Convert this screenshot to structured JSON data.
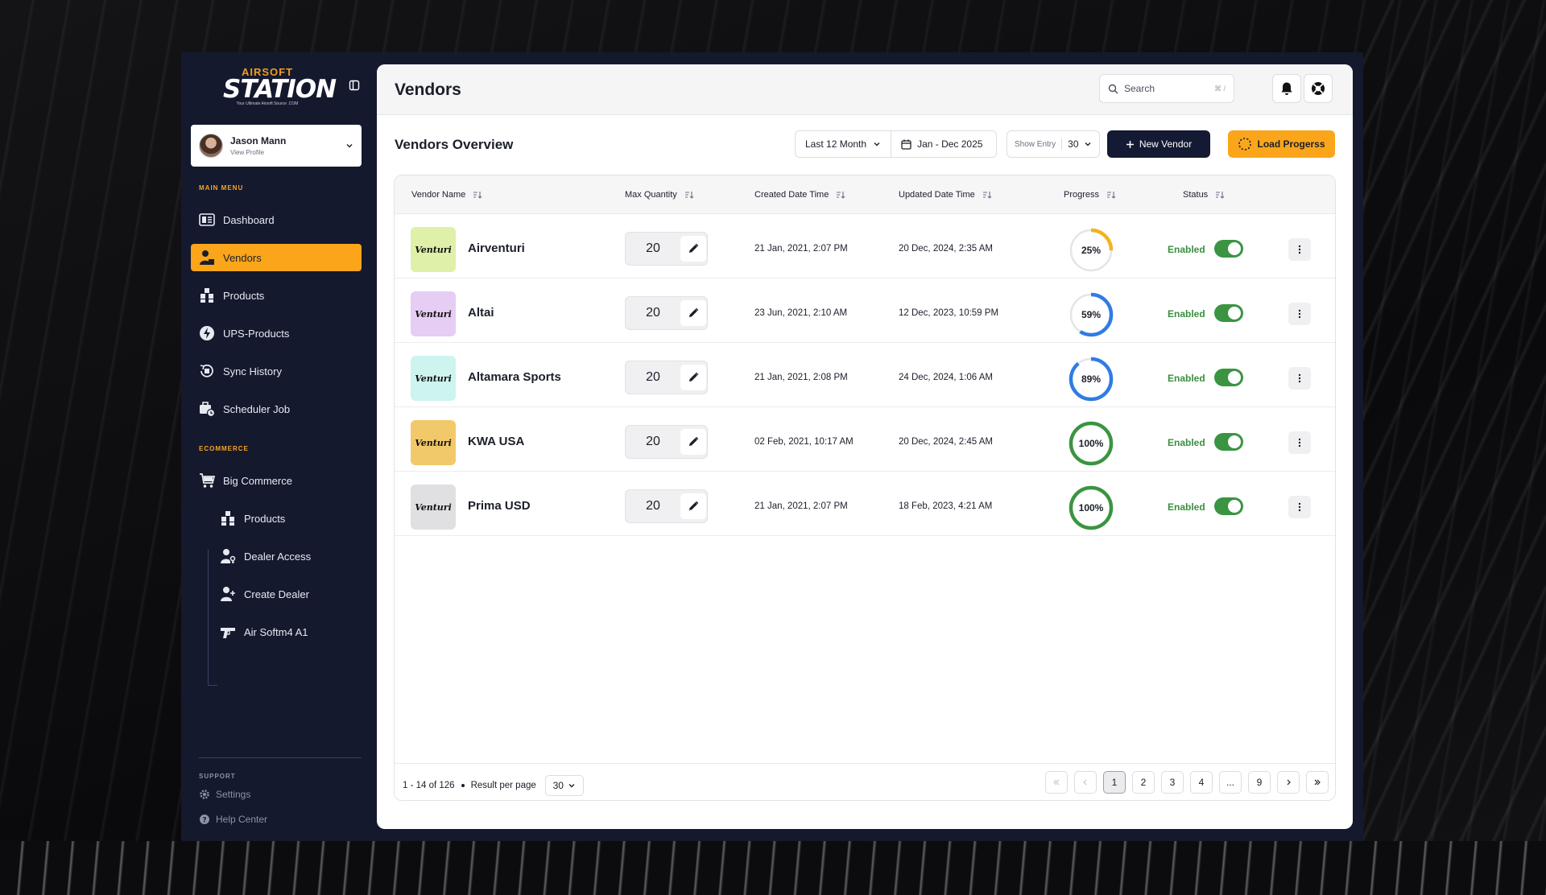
{
  "brand": {
    "line1": "AIRSOFT",
    "line2": "STATION",
    "tagline": "Your Ultimate Airsoft Source  .COM"
  },
  "profile": {
    "name": "Jason Mann",
    "subtitle": "View Profile"
  },
  "sidebar": {
    "main_menu_label": "MAIN MENU",
    "main_items": [
      {
        "label": "Dashboard",
        "icon": "dashboard-icon"
      },
      {
        "label": "Vendors",
        "icon": "vendor-icon",
        "active": true
      },
      {
        "label": "Products",
        "icon": "boxes-icon"
      },
      {
        "label": "UPS-Products",
        "icon": "lightning-icon"
      },
      {
        "label": "Sync History",
        "icon": "history-icon"
      },
      {
        "label": "Scheduler Job",
        "icon": "scheduler-icon"
      }
    ],
    "ecommerce_label": "ECOMMERCE",
    "ecommerce_items": [
      {
        "label": "Big Commerce",
        "icon": "cart-icon"
      }
    ],
    "ecommerce_sub_items": [
      {
        "label": "Products",
        "icon": "boxes-icon"
      },
      {
        "label": "Dealer Access",
        "icon": "user-key-icon"
      },
      {
        "label": "Create Dealer",
        "icon": "user-plus-icon"
      },
      {
        "label": "Air Softm4 A1",
        "icon": "gun-icon"
      }
    ],
    "support_label": "SUPPORT",
    "support_items": [
      {
        "label": "Settings",
        "icon": "gear-icon"
      },
      {
        "label": "Help Center",
        "icon": "help-icon"
      }
    ]
  },
  "header": {
    "title": "Vendors",
    "search_placeholder": "Search",
    "search_shortcut": "⌘ /"
  },
  "toolbar": {
    "section_title": "Vendors Overview",
    "period": "Last 12 Month",
    "date_range": "Jan - Dec 2025",
    "show_entry_label": "Show Entry",
    "show_entry_value": "30",
    "new_vendor_label": "New Vendor",
    "load_progress_label": "Load Progerss"
  },
  "table": {
    "columns": [
      "Vendor Name",
      "Max Quantity",
      "Created Date Time",
      "Updated Date Time",
      "Progress",
      "Status"
    ],
    "rows": [
      {
        "name": "Airventuri",
        "logo": "Venturi",
        "tile_color": "#dff0a8",
        "qty": "20",
        "created": "21 Jan, 2021, 2:07 PM",
        "updated": "20 Dec, 2024, 2:35 AM",
        "progress": 25,
        "progress_label": "25%",
        "ring_color": "#f5b21d",
        "status": "Enabled"
      },
      {
        "name": "Altai",
        "logo": "Venturi",
        "tile_color": "#e5cdf3",
        "qty": "20",
        "created": "23 Jun, 2021, 2:10 AM",
        "updated": "12 Dec, 2023, 10:59 PM",
        "progress": 59,
        "progress_label": "59%",
        "ring_color": "#2f7ce3",
        "status": "Enabled"
      },
      {
        "name": "Altamara Sports",
        "logo": "Venturi",
        "tile_color": "#cdf4ef",
        "qty": "20",
        "created": "21 Jan, 2021, 2:08 PM",
        "updated": "24 Dec, 2024, 1:06 AM",
        "progress": 89,
        "progress_label": "89%",
        "ring_color": "#2f7ce3",
        "status": "Enabled"
      },
      {
        "name": "KWA USA",
        "logo": "Venturi",
        "tile_color": "#f2c96a",
        "qty": "20",
        "created": "02 Feb, 2021, 10:17 AM",
        "updated": "20 Dec, 2024, 2:45 AM",
        "progress": 100,
        "progress_label": "100%",
        "ring_color": "#3a9442",
        "status": "Enabled"
      },
      {
        "name": "Prima USD",
        "logo": "Venturi",
        "tile_color": "#e0e0e2",
        "qty": "20",
        "created": "21 Jan, 2021, 2:07 PM",
        "updated": "18 Feb, 2023, 4:21 AM",
        "progress": 100,
        "progress_label": "100%",
        "ring_color": "#3a9442",
        "status": "Enabled"
      }
    ]
  },
  "footer": {
    "range_text": "1 - 14 of 126",
    "per_page_label": "Result per page",
    "per_page_value": "30",
    "pages": [
      "1",
      "2",
      "3",
      "4",
      "...",
      "9"
    ],
    "current_page": "1"
  }
}
